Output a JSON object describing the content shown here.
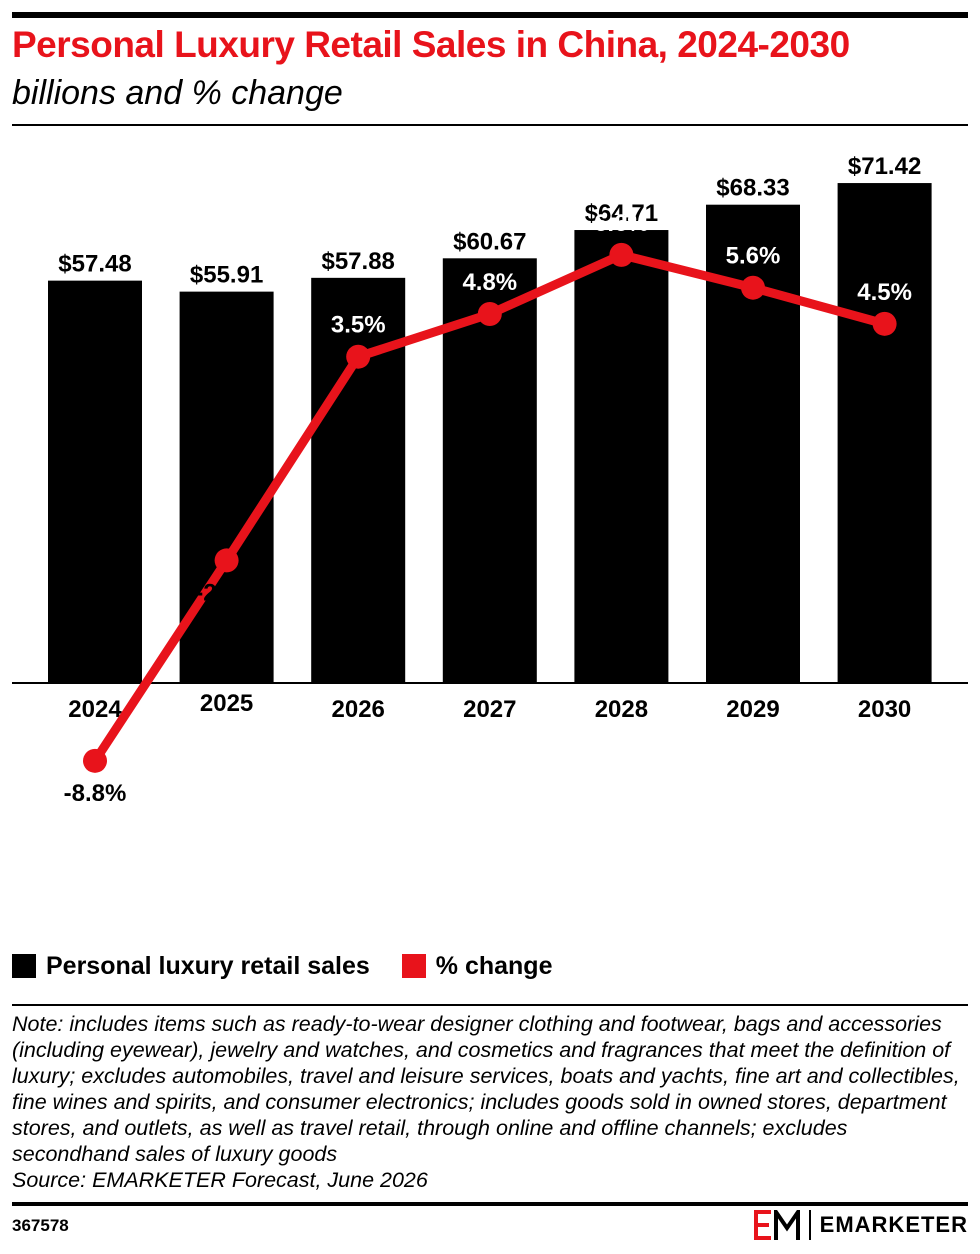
{
  "header": {
    "title": "Personal Luxury Retail Sales in China, 2024-2030",
    "subtitle": "billions and % change"
  },
  "chart_data": {
    "type": "bar",
    "categories": [
      "2024",
      "2025",
      "2026",
      "2027",
      "2028",
      "2029",
      "2030"
    ],
    "series": [
      {
        "name": "Personal luxury retail sales",
        "type": "bar",
        "values": [
          57.48,
          55.91,
          57.88,
          60.67,
          64.71,
          68.33,
          71.42
        ],
        "labels": [
          "$57.48",
          "$55.91",
          "$57.88",
          "$60.67",
          "$64.71",
          "$68.33",
          "$71.42"
        ],
        "color": "#000000"
      },
      {
        "name": "% change",
        "type": "line",
        "values": [
          -8.8,
          -2.7,
          3.5,
          4.8,
          6.6,
          5.6,
          4.5
        ],
        "labels": [
          "-8.8%",
          "-2.7%",
          "3.5%",
          "4.8%",
          "6.6%",
          "5.6%",
          "4.5%"
        ],
        "color": "#e8131b"
      }
    ],
    "bar_axis_range": [
      0,
      79
    ],
    "line_axis_range": [
      -13.34,
      10.4
    ],
    "grid": false,
    "legend": "bottom-left"
  },
  "legend": {
    "items": [
      {
        "label": "Personal luxury retail sales",
        "color": "#000000"
      },
      {
        "label": "% change",
        "color": "#e8131b"
      }
    ]
  },
  "footer": {
    "note": "Note: includes items such as ready-to-wear designer clothing and footwear, bags and accessories (including eyewear), jewelry and watches, and cosmetics and fragrances that meet the definition of luxury; excludes automobiles, travel and leisure services, boats and yachts, fine art and collectibles, fine wines and spirits, and consumer electronics; includes goods sold in owned stores, department stores, and outlets, as well as travel retail, through online and offline channels; excludes secondhand sales of luxury goods",
    "source": "Source: EMARKETER Forecast, June 2026",
    "chart_id": "367578",
    "brand": "EMARKETER",
    "brand_color": "#e8131b"
  }
}
